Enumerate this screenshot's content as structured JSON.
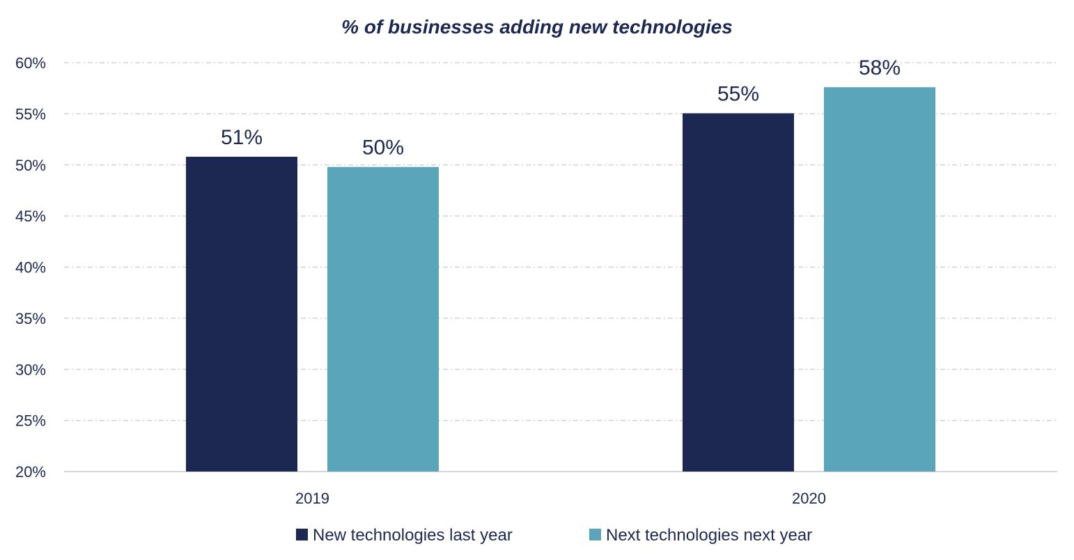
{
  "chart_data": {
    "type": "bar",
    "title": "% of businesses adding new technologies",
    "xlabel": "",
    "ylabel": "",
    "categories": [
      "2019",
      "2020"
    ],
    "series": [
      {
        "name": "New technologies last year",
        "color": "#1c2852",
        "values": [
          51,
          55
        ],
        "labels": [
          "51%",
          "55%"
        ],
        "plotted": [
          50.8,
          55.05
        ]
      },
      {
        "name": "Next technologies next year",
        "color": "#5ba5bb",
        "values": [
          50,
          58
        ],
        "labels": [
          "50%",
          "58%"
        ],
        "plotted": [
          49.8,
          57.6
        ]
      }
    ],
    "ylim": [
      20,
      60
    ],
    "yticks": [
      20,
      25,
      30,
      35,
      40,
      45,
      50,
      55,
      60
    ],
    "ytick_labels": [
      "20%",
      "25%",
      "30%",
      "35%",
      "40%",
      "45%",
      "50%",
      "55%",
      "60%"
    ],
    "grid": true,
    "legend_position": "bottom-center"
  }
}
